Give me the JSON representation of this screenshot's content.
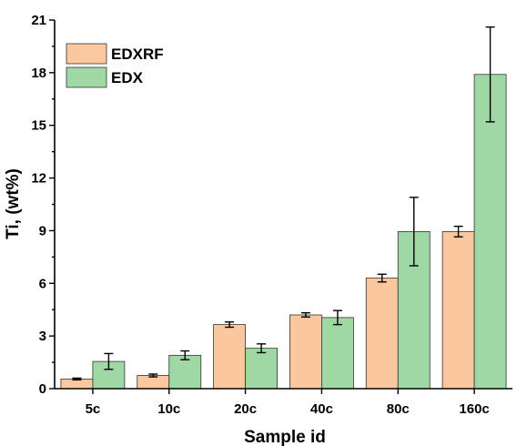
{
  "chart_data": {
    "type": "bar",
    "categories": [
      "5c",
      "10c",
      "20c",
      "40c",
      "80c",
      "160c"
    ],
    "series": [
      {
        "name": "EDXRF",
        "color": "#FBC79F",
        "values": [
          0.55,
          0.75,
          3.65,
          4.2,
          6.3,
          8.95
        ],
        "errors": [
          0.05,
          0.08,
          0.15,
          0.12,
          0.22,
          0.3
        ]
      },
      {
        "name": "EDX",
        "color": "#9FD8A4",
        "values": [
          1.55,
          1.9,
          2.3,
          4.05,
          8.95,
          17.9
        ],
        "errors": [
          0.45,
          0.25,
          0.25,
          0.4,
          1.95,
          2.7
        ]
      }
    ],
    "xlabel": "Sample id",
    "ylabel": "Ti, (wt%)",
    "ylim": [
      0,
      21
    ],
    "yticks": [
      "0",
      "3",
      "6",
      "9",
      "12",
      "15",
      "18",
      "21"
    ],
    "legend_position": "top-left",
    "grid": false
  }
}
